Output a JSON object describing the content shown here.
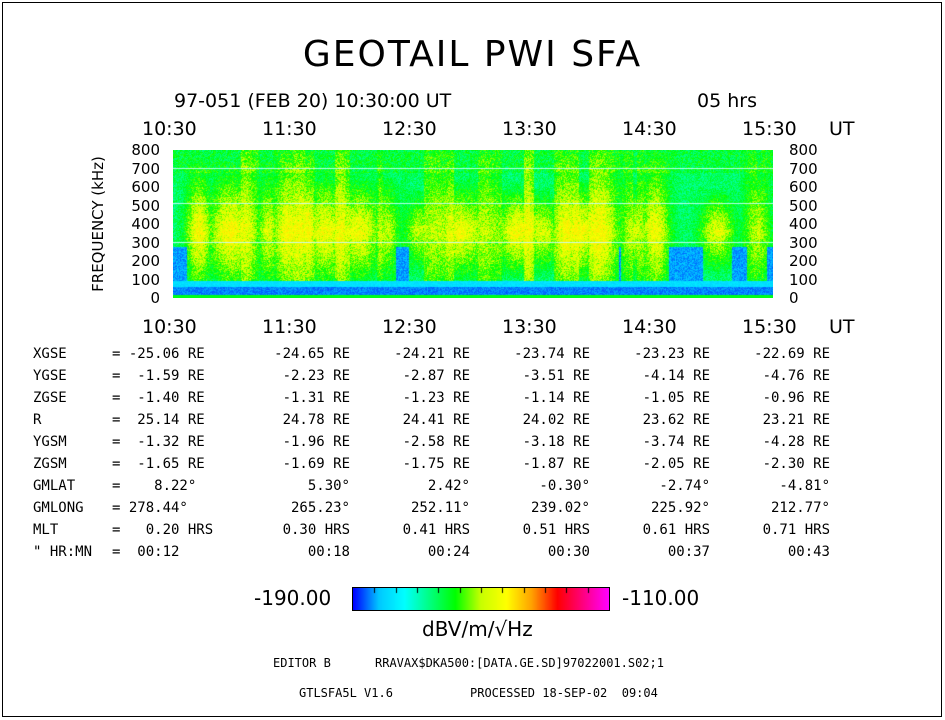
{
  "chart_data": {
    "type": "heatmap",
    "title": "GEOTAIL PWI SFA",
    "subtitle_left": "97-051 (FEB 20) 10:30:00 UT",
    "subtitle_right": "05 hrs",
    "x_tick_labels": [
      "10:30",
      "11:30",
      "12:30",
      "13:30",
      "14:30",
      "15:30"
    ],
    "x_unit": "UT",
    "x_range_hours": [
      0,
      5
    ],
    "ylabel": "FREQUENCY (kHz)",
    "y_tick_labels": [
      "800",
      "700",
      "600",
      "500",
      "400",
      "300",
      "200",
      "100",
      "0"
    ],
    "ylim": [
      0,
      800
    ],
    "colorbar": {
      "min_label": "-190.00",
      "max_label": "-110.00",
      "unit": "dBV/m/√Hz",
      "min": -190,
      "max": -110,
      "colors": [
        "#0000ff",
        "#00c8ff",
        "#00ffff",
        "#00ff80",
        "#00ff00",
        "#c8ff00",
        "#ffff00",
        "#ffa000",
        "#ff0000",
        "#ff0080",
        "#ff00ff"
      ]
    },
    "ephemeris": {
      "rows": [
        {
          "label": "XGSE",
          "values": [
            "= -25.06 RE",
            "-24.65 RE",
            "-24.21 RE",
            "-23.74 RE",
            "-23.23 RE",
            "-22.69 RE"
          ]
        },
        {
          "label": "YGSE",
          "values": [
            "=  -1.59 RE",
            "-2.23 RE",
            "-2.87 RE",
            "-3.51 RE",
            "-4.14 RE",
            "-4.76 RE"
          ]
        },
        {
          "label": "ZGSE",
          "values": [
            "=  -1.40 RE",
            "-1.31 RE",
            "-1.23 RE",
            "-1.14 RE",
            "-1.05 RE",
            "-0.96 RE"
          ]
        },
        {
          "label": "R",
          "values": [
            "=  25.14 RE",
            "24.78 RE",
            "24.41 RE",
            "24.02 RE",
            "23.62 RE",
            "23.21 RE"
          ]
        },
        {
          "label": "YGSM",
          "values": [
            "=  -1.32 RE",
            "-1.96 RE",
            "-2.58 RE",
            "-3.18 RE",
            "-3.74 RE",
            "-4.28 RE"
          ]
        },
        {
          "label": "ZGSM",
          "values": [
            "=  -1.65 RE",
            "-1.69 RE",
            "-1.75 RE",
            "-1.87 RE",
            "-2.05 RE",
            "-2.30 RE"
          ]
        },
        {
          "label": "GMLAT",
          "values": [
            "=    8.22°",
            "5.30°",
            "2.42°",
            "-0.30°",
            "-2.74°",
            "-4.81°"
          ]
        },
        {
          "label": "GMLONG",
          "values": [
            "= 278.44°",
            "265.23°",
            "252.11°",
            "239.02°",
            "225.92°",
            "212.77°"
          ]
        },
        {
          "label": "MLT",
          "values": [
            "=   0.20 HRS",
            "0.30 HRS",
            "0.41 HRS",
            "0.51 HRS",
            "0.61 HRS",
            "0.71 HRS"
          ]
        },
        {
          "label": "\" HR:MN",
          "values": [
            "=  00:12",
            "00:18",
            "00:24",
            "00:30",
            "00:37",
            "00:43"
          ]
        }
      ]
    }
  },
  "footer": {
    "editor": "EDITOR B",
    "path": "RRAVAX$DKA500:[DATA.GE.SD]97022001.S02;1",
    "version": "GTLSFA5L V1.6",
    "processed": "PROCESSED 18-SEP-02  09:04"
  }
}
